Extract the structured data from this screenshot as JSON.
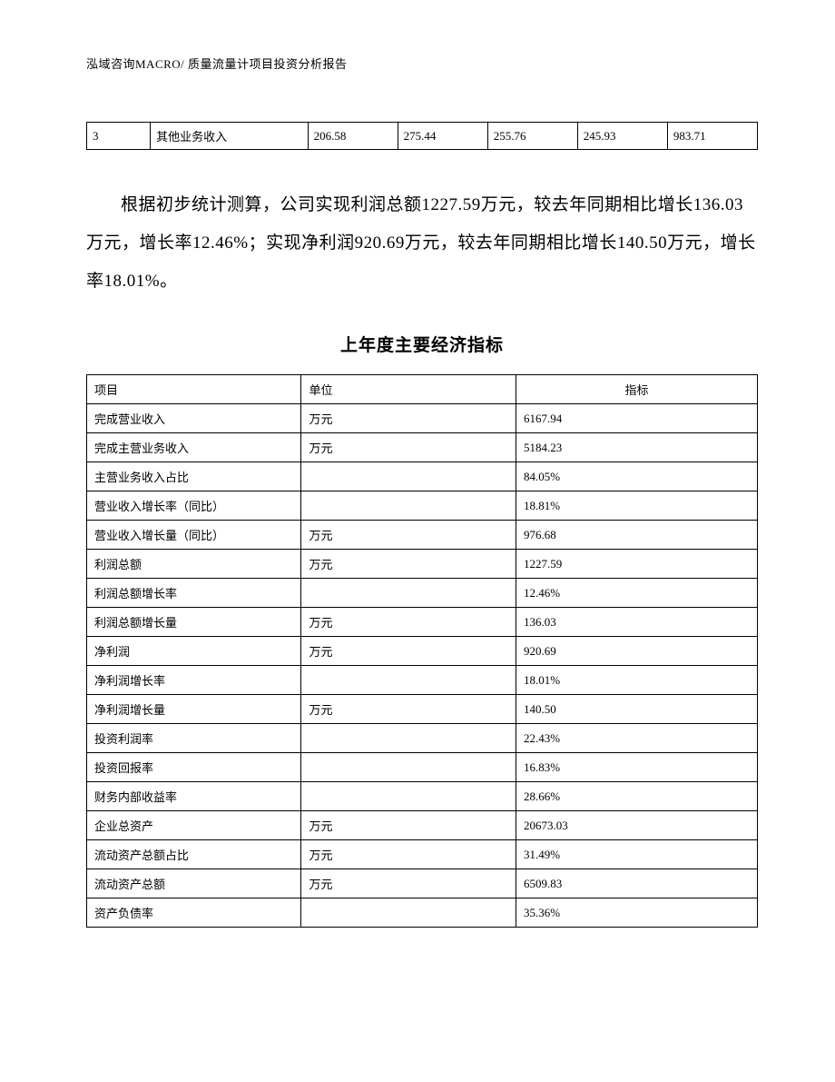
{
  "header": "泓域咨询MACRO/   质量流量计项目投资分析报告",
  "small_table": {
    "columns": [
      "col1",
      "col2",
      "col3",
      "col4",
      "col5",
      "col6",
      "col7"
    ],
    "row": [
      "3",
      "其他业务收入",
      "206.58",
      "275.44",
      "255.76",
      "245.93",
      "983.71"
    ]
  },
  "paragraph": "根据初步统计测算，公司实现利润总额1227.59万元，较去年同期相比增长136.03万元，增长率12.46%；实现净利润920.69万元，较去年同期相比增长140.50万元，增长率18.01%。",
  "main_table": {
    "title": "上年度主要经济指标",
    "headers": [
      "项目",
      "单位",
      "指标"
    ],
    "rows": [
      {
        "item": "完成营业收入",
        "unit": "万元",
        "value": "6167.94"
      },
      {
        "item": "完成主营业务收入",
        "unit": "万元",
        "value": "5184.23"
      },
      {
        "item": "主营业务收入占比",
        "unit": "",
        "value": "84.05%"
      },
      {
        "item": "营业收入增长率（同比）",
        "unit": "",
        "value": "18.81%"
      },
      {
        "item": "营业收入增长量（同比）",
        "unit": "万元",
        "value": "976.68"
      },
      {
        "item": "利润总额",
        "unit": "万元",
        "value": "1227.59"
      },
      {
        "item": "利润总额增长率",
        "unit": "",
        "value": "12.46%"
      },
      {
        "item": "利润总额增长量",
        "unit": "万元",
        "value": "136.03"
      },
      {
        "item": "净利润",
        "unit": "万元",
        "value": "920.69"
      },
      {
        "item": "净利润增长率",
        "unit": "",
        "value": "18.01%"
      },
      {
        "item": "净利润增长量",
        "unit": "万元",
        "value": "140.50"
      },
      {
        "item": "投资利润率",
        "unit": "",
        "value": "22.43%"
      },
      {
        "item": "投资回报率",
        "unit": "",
        "value": "16.83%"
      },
      {
        "item": "财务内部收益率",
        "unit": "",
        "value": "28.66%"
      },
      {
        "item": "企业总资产",
        "unit": "万元",
        "value": "20673.03"
      },
      {
        "item": "流动资产总额占比",
        "unit": "万元",
        "value": "31.49%"
      },
      {
        "item": "流动资产总额",
        "unit": "万元",
        "value": "6509.83"
      },
      {
        "item": "资产负债率",
        "unit": "",
        "value": "35.36%"
      }
    ]
  }
}
